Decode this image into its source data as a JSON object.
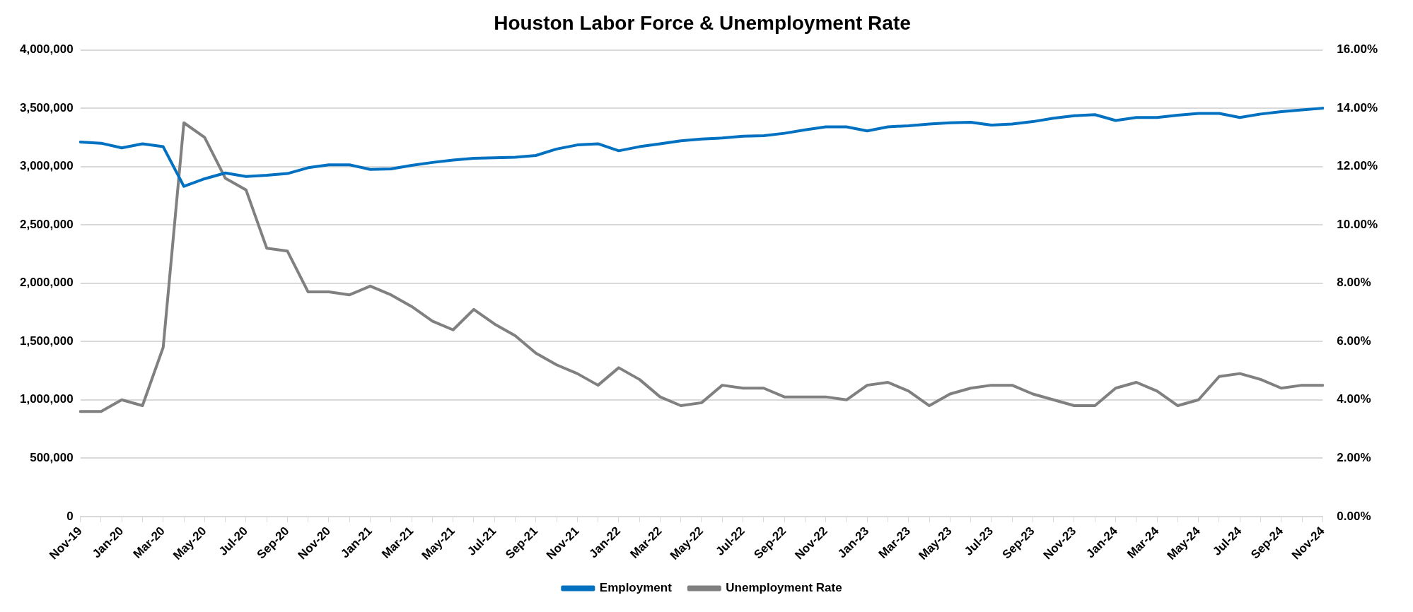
{
  "chart_data": {
    "type": "line",
    "title": "Houston Labor Force & Unemployment Rate",
    "categories": [
      "Nov-19",
      null,
      "Jan-20",
      null,
      "Mar-20",
      null,
      "May-20",
      null,
      "Jul-20",
      null,
      "Sep-20",
      null,
      "Nov-20",
      null,
      "Jan-21",
      null,
      "Mar-21",
      null,
      "May-21",
      null,
      "Jul-21",
      null,
      "Sep-21",
      null,
      "Nov-21",
      null,
      "Jan-22",
      null,
      "Mar-22",
      null,
      "May-22",
      null,
      "Jul-22",
      null,
      "Sep-22",
      null,
      "Nov-22",
      null,
      "Jan-23",
      null,
      "Mar-23",
      null,
      "May-23",
      null,
      "Jul-23",
      null,
      "Sep-23",
      null,
      "Nov-23",
      null,
      "Jan-24",
      null,
      "Mar-24",
      null,
      "May-24",
      null,
      "Jul-24",
      null,
      "Sep-24",
      null,
      "Nov-24"
    ],
    "series": [
      {
        "name": "Employment",
        "color": "#0070c0",
        "values": [
          3210000,
          3200000,
          3160000,
          3195000,
          3170000,
          2830000,
          2895000,
          2945000,
          2915000,
          2925000,
          2940000,
          2990000,
          3015000,
          3015000,
          2975000,
          2980000,
          3010000,
          3035000,
          3055000,
          3070000,
          3075000,
          3080000,
          3095000,
          3150000,
          3185000,
          3195000,
          3135000,
          3170000,
          3195000,
          3220000,
          3235000,
          3245000,
          3260000,
          3265000,
          3285000,
          3315000,
          3340000,
          3340000,
          3305000,
          3340000,
          3350000,
          3365000,
          3375000,
          3380000,
          3355000,
          3365000,
          3385000,
          3415000,
          3435000,
          3445000,
          3395000,
          3420000,
          3420000,
          3440000,
          3455000,
          3455000,
          3420000,
          3450000,
          3470000,
          3485000,
          3500000
        ]
      },
      {
        "name": "Unemployment Rate",
        "color": "#808080",
        "axis": "y2",
        "values": [
          3.6,
          3.6,
          4.0,
          3.8,
          5.8,
          13.5,
          13.0,
          11.6,
          11.2,
          9.2,
          9.1,
          7.7,
          7.7,
          7.6,
          7.9,
          7.6,
          7.2,
          6.7,
          6.4,
          7.1,
          6.6,
          6.2,
          5.6,
          5.2,
          4.9,
          4.5,
          5.1,
          4.7,
          4.1,
          3.8,
          3.9,
          4.5,
          4.4,
          4.4,
          4.1,
          4.1,
          4.1,
          4.0,
          4.5,
          4.6,
          4.3,
          3.8,
          4.2,
          4.4,
          4.5,
          4.5,
          4.2,
          4.0,
          3.8,
          3.8,
          4.4,
          4.6,
          4.3,
          3.8,
          4.0,
          4.8,
          4.9,
          4.7,
          4.4,
          4.5,
          4.5
        ]
      }
    ],
    "ylim": [
      0,
      4000000
    ],
    "yticks": [
      {
        "value": 0,
        "label": "0"
      },
      {
        "value": 500000,
        "label": "500,000"
      },
      {
        "value": 1000000,
        "label": "1,000,000"
      },
      {
        "value": 1500000,
        "label": "1,500,000"
      },
      {
        "value": 2000000,
        "label": "2,000,000"
      },
      {
        "value": 2500000,
        "label": "2,500,000"
      },
      {
        "value": 3000000,
        "label": "3,000,000"
      },
      {
        "value": 3500000,
        "label": "3,500,000"
      },
      {
        "value": 4000000,
        "label": "4,000,000"
      }
    ],
    "y2lim": [
      0,
      16
    ],
    "y2ticks": [
      {
        "value": 0,
        "label": "0.00%"
      },
      {
        "value": 2,
        "label": "2.00%"
      },
      {
        "value": 4,
        "label": "4.00%"
      },
      {
        "value": 6,
        "label": "6.00%"
      },
      {
        "value": 8,
        "label": "8.00%"
      },
      {
        "value": 10,
        "label": "10.00%"
      },
      {
        "value": 12,
        "label": "12.00%"
      },
      {
        "value": 14,
        "label": "14.00%"
      },
      {
        "value": 16,
        "label": "16.00%"
      }
    ],
    "grid": "y",
    "legend": "bottom",
    "marker": "none",
    "line_style": "solid"
  }
}
